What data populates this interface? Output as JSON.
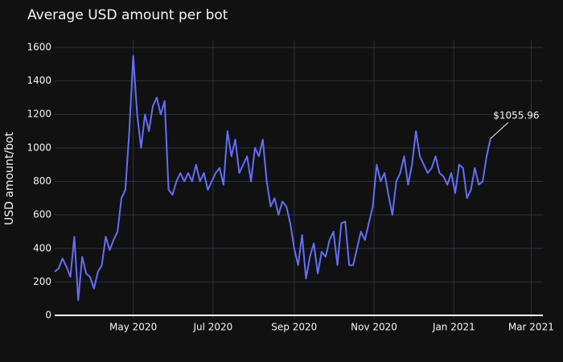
{
  "chart_data": {
    "type": "line",
    "title": "Average USD amount per bot",
    "ylabel": "USD amount/bot",
    "annotation": "$1055.96",
    "x": [
      0,
      3,
      6,
      9,
      12,
      15,
      18,
      21,
      24,
      27,
      30,
      33,
      36,
      39,
      42,
      45,
      48,
      51,
      54,
      57,
      60,
      63,
      66,
      69,
      72,
      75,
      78,
      81,
      84,
      87,
      90,
      93,
      96,
      99,
      102,
      105,
      108,
      111,
      114,
      117,
      120,
      123,
      126,
      129,
      132,
      135,
      138,
      141,
      144,
      147,
      150,
      153,
      156,
      159,
      162,
      165,
      168,
      171,
      174,
      177,
      180,
      183,
      186,
      189,
      192,
      195,
      198,
      201,
      204,
      207,
      210,
      213,
      216,
      219,
      222,
      225,
      228,
      231,
      234,
      237,
      240,
      243,
      246,
      249,
      252,
      255,
      258,
      261,
      264,
      267,
      270,
      273,
      276,
      279,
      282,
      285,
      288,
      291,
      294,
      297,
      300,
      303,
      306,
      309,
      312,
      315,
      318,
      321,
      324,
      327,
      330,
      333
    ],
    "series": [
      {
        "name": "USD amount/bot",
        "color": "#636efa",
        "values": [
          260,
          280,
          340,
          290,
          230,
          470,
          90,
          350,
          250,
          230,
          160,
          260,
          300,
          470,
          390,
          450,
          500,
          700,
          750,
          1100,
          1550,
          1200,
          1000,
          1200,
          1100,
          1250,
          1300,
          1200,
          1280,
          750,
          720,
          800,
          850,
          800,
          850,
          800,
          900,
          800,
          850,
          750,
          800,
          850,
          880,
          780,
          1100,
          950,
          1050,
          850,
          900,
          950,
          800,
          1000,
          950,
          1050,
          800,
          650,
          700,
          600,
          680,
          650,
          550,
          400,
          300,
          480,
          220,
          350,
          430,
          250,
          380,
          350,
          450,
          500,
          300,
          550,
          560,
          300,
          300,
          400,
          500,
          450,
          550,
          650,
          900,
          800,
          850,
          720,
          600,
          800,
          850,
          950,
          780,
          900,
          1100,
          950,
          900,
          850,
          880,
          950,
          850,
          830,
          780,
          850,
          730,
          900,
          880,
          700,
          750,
          880,
          780,
          800,
          950,
          1055.96
        ]
      }
    ],
    "xlim": [
      0,
      373
    ],
    "xticks": [
      {
        "value": 60,
        "label": "May 2020"
      },
      {
        "value": 121,
        "label": "Jul 2020"
      },
      {
        "value": 183,
        "label": "Sep 2020"
      },
      {
        "value": 244,
        "label": "Nov 2020"
      },
      {
        "value": 305,
        "label": "Jan 2021"
      },
      {
        "value": 364,
        "label": "Mar 2021"
      }
    ],
    "ylim": [
      -19,
      1643
    ],
    "yticks": [
      0,
      200,
      400,
      600,
      800,
      1000,
      1200,
      1400,
      1600
    ],
    "grid": true
  }
}
